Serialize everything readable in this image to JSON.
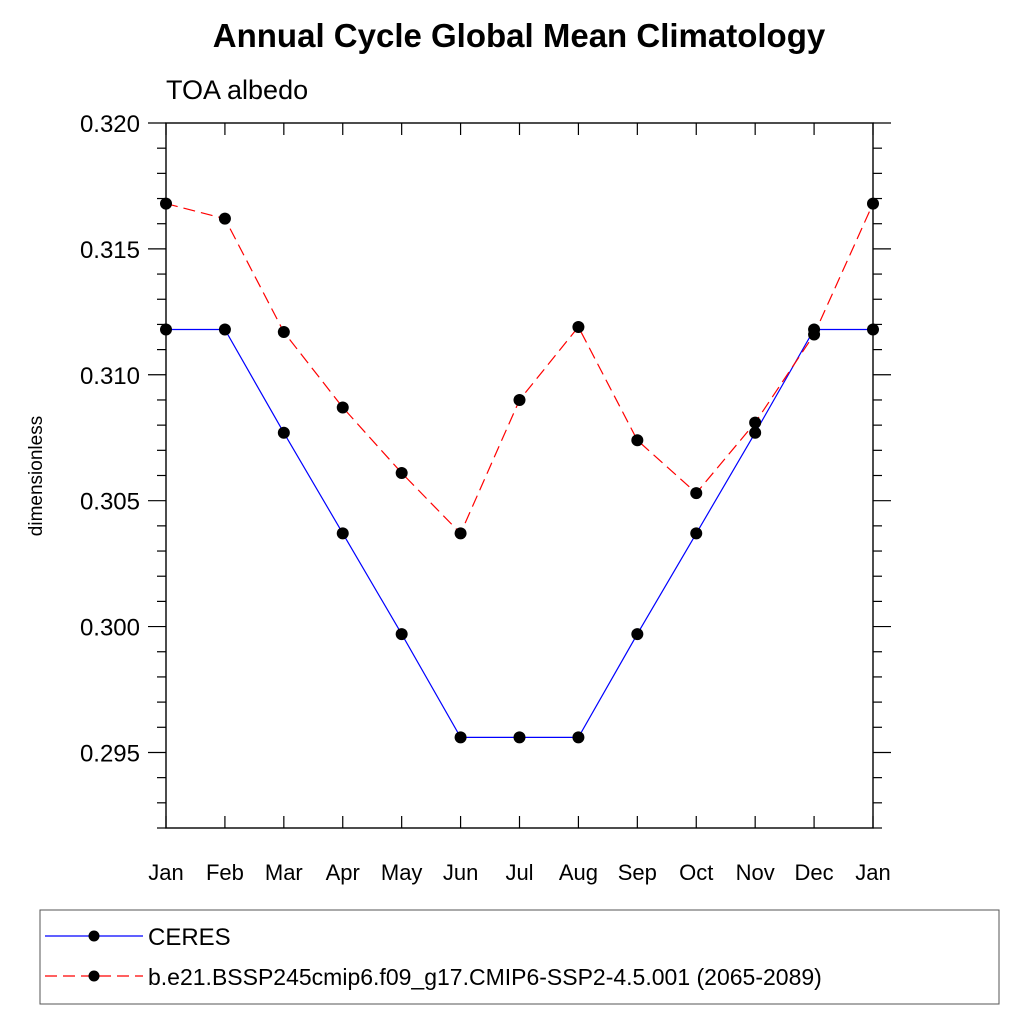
{
  "chart_data": {
    "type": "line",
    "title": "Annual Cycle Global Mean Climatology",
    "subtitle": "TOA albedo",
    "xlabel": "",
    "ylabel": "dimensionless",
    "categories": [
      "Jan",
      "Feb",
      "Mar",
      "Apr",
      "May",
      "Jun",
      "Jul",
      "Aug",
      "Sep",
      "Oct",
      "Nov",
      "Dec",
      "Jan"
    ],
    "ylim": [
      0.292,
      0.32
    ],
    "yticks": [
      "0.295",
      "0.300",
      "0.305",
      "0.310",
      "0.315",
      "0.320"
    ],
    "grid": false,
    "legend_position": "bottom",
    "series": [
      {
        "name": "CERES",
        "color": "#0000ff",
        "line_style": "solid",
        "marker": "filled-circle",
        "values": [
          0.3118,
          0.3118,
          0.3077,
          0.3037,
          0.2997,
          0.2956,
          0.2956,
          0.2956,
          0.2997,
          0.3037,
          0.3077,
          0.3118,
          0.3118
        ]
      },
      {
        "name": "b.e21.BSSP245cmip6.f09_g17.CMIP6-SSP2-4.5.001 (2065-2089)",
        "color": "#ff0000",
        "line_style": "dashed",
        "marker": "filled-circle",
        "values": [
          0.3168,
          0.3162,
          0.3117,
          0.3087,
          0.3061,
          0.3037,
          0.309,
          0.3119,
          0.3074,
          0.3053,
          0.3081,
          0.3116,
          0.3168
        ]
      }
    ]
  }
}
